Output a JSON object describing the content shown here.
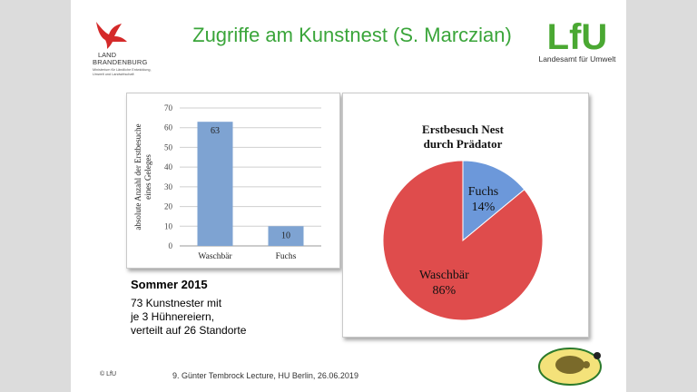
{
  "slide": {
    "title": "Zugriffe am Kunstnest (S. Marczian)",
    "logo_left": {
      "line1": "LAND",
      "line2": "BRANDENBURG",
      "line3": "Ministerium für Ländliche Entwicklung, Umwelt und Landwirtschaft"
    },
    "logo_right": {
      "name": "LfU",
      "subtitle": "Landesamt für Umwelt"
    },
    "notes": {
      "heading": "Sommer 2015",
      "lines": [
        "73 Kunstnester mit",
        "je 3 Hühnereiern,",
        "verteilt auf 26 Standorte"
      ]
    },
    "copyright": "© LfU",
    "footer": "9. Günter Tembrock Lecture, HU Berlin, 26.06.2019",
    "colors": {
      "title_green": "#3aa53a",
      "bar_blue": "#7ea3d2",
      "pie_red": "#df4c4c",
      "pie_blue": "#6c98da"
    }
  },
  "chart_data": [
    {
      "type": "bar",
      "categories": [
        "Waschbär",
        "Fuchs"
      ],
      "values": [
        63,
        10
      ],
      "data_labels": [
        "63",
        "10"
      ],
      "ylabel": "absolute Anzahl der Erstbesuche eines Geleges",
      "ylim": [
        0,
        70
      ],
      "yticks": [
        "0",
        "10",
        "20",
        "30",
        "40",
        "50",
        "60",
        "70"
      ],
      "grid": true
    },
    {
      "type": "pie",
      "title_lines": [
        "Erstbesuch Nest",
        "durch Prädator"
      ],
      "labels": [
        "Fuchs",
        "Waschbär"
      ],
      "values": [
        14,
        86
      ],
      "value_labels": [
        "14%",
        "86%"
      ]
    }
  ]
}
